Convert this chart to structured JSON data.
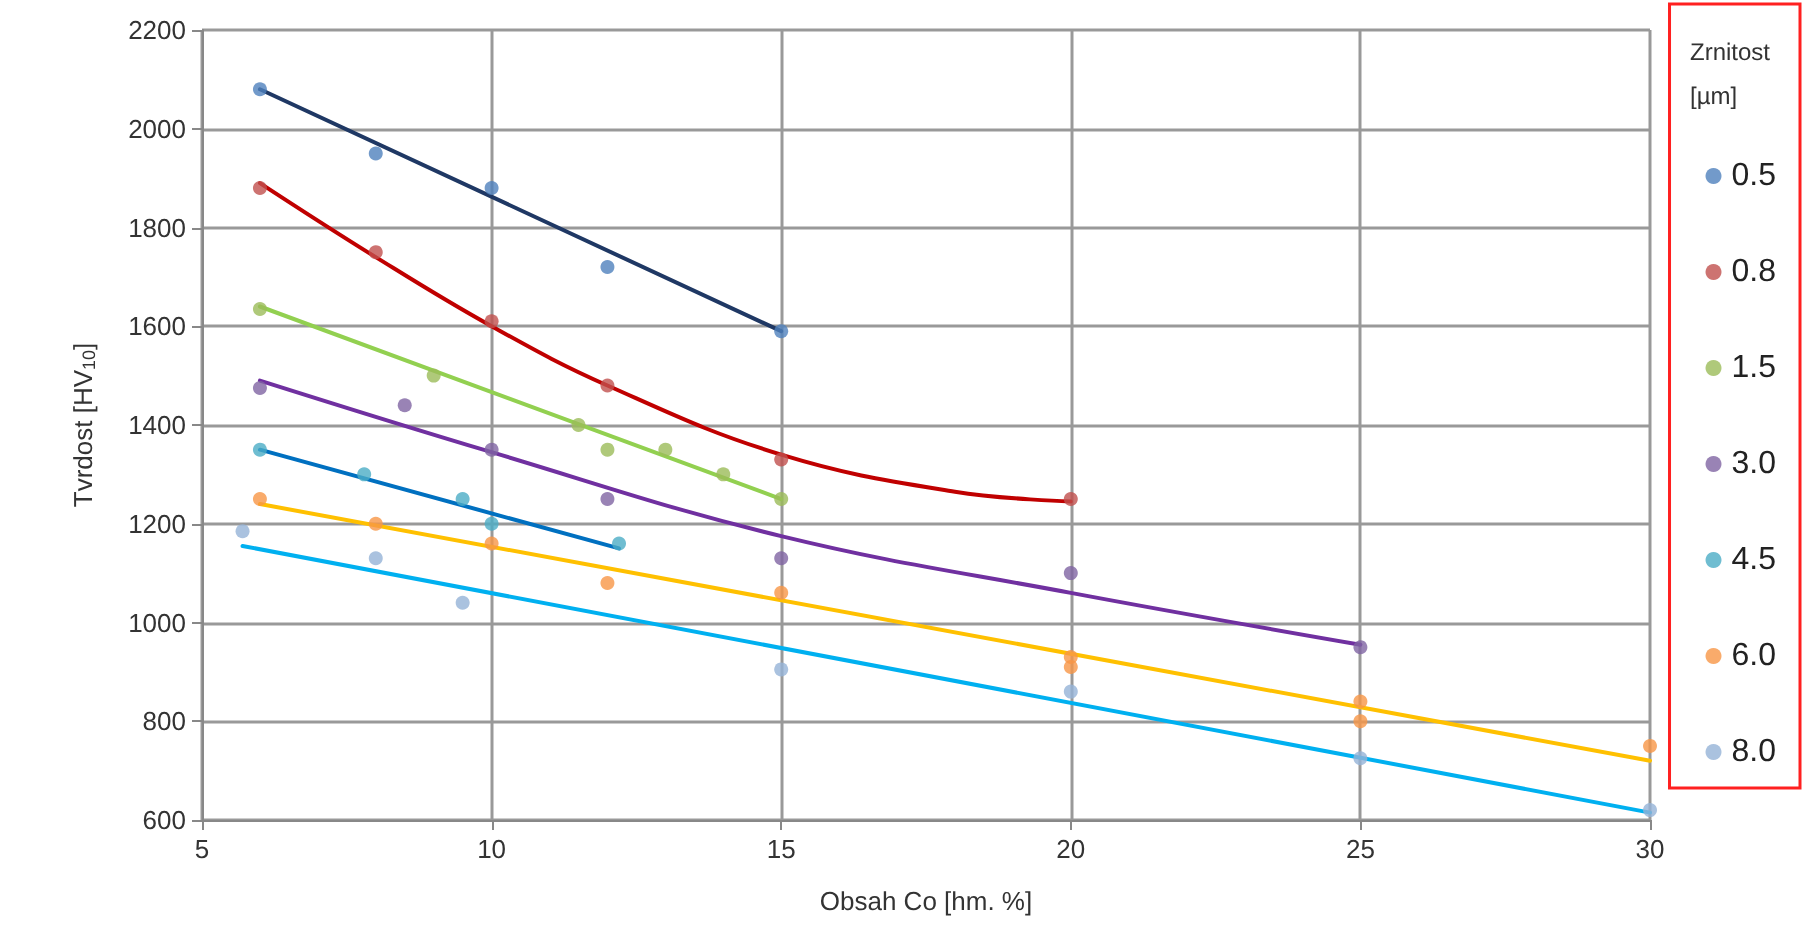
{
  "chart_data": {
    "type": "scatter",
    "xlabel": "Obsah Co [hm. %]",
    "ylabel": "Tvrdost [HV$_{10}$]",
    "legend_title": "Zrnitost\n[µm]",
    "xlim": [
      5,
      30
    ],
    "xticks": [
      5,
      10,
      15,
      20,
      25,
      30
    ],
    "ylim": [
      600,
      2200
    ],
    "yticks": [
      600,
      800,
      1000,
      1200,
      1400,
      1600,
      1800,
      2000,
      2200
    ],
    "grid": true,
    "legend": "right",
    "series": [
      {
        "name": "0.5",
        "marker": "circle",
        "color": "#4f81bd",
        "x": [
          6,
          8,
          10,
          12,
          15
        ],
        "values": [
          2080,
          1950,
          1880,
          1720,
          1590
        ]
      },
      {
        "name": "0.8",
        "marker": "circle",
        "color": "#c0504d",
        "x": [
          6,
          8,
          10,
          12,
          15,
          20
        ],
        "values": [
          1880,
          1750,
          1610,
          1480,
          1330,
          1250
        ]
      },
      {
        "name": "1.5",
        "marker": "circle",
        "color": "#9bbb59",
        "x": [
          6,
          9,
          11.5,
          12,
          13,
          14,
          15
        ],
        "values": [
          1635,
          1500,
          1400,
          1350,
          1350,
          1300,
          1250
        ]
      },
      {
        "name": "3.0",
        "marker": "circle",
        "color": "#8064a2",
        "x": [
          6,
          8.5,
          10,
          12,
          15,
          20,
          25
        ],
        "values": [
          1475,
          1440,
          1350,
          1250,
          1130,
          1100,
          950
        ]
      },
      {
        "name": "4.5",
        "marker": "circle",
        "color": "#4bacc6",
        "x": [
          6,
          7.8,
          9.5,
          10,
          12.2
        ],
        "values": [
          1350,
          1300,
          1250,
          1200,
          1160
        ]
      },
      {
        "name": "6.0",
        "marker": "circle",
        "color": "#f79646",
        "x": [
          6,
          8,
          10,
          12,
          15,
          20,
          20,
          25,
          25,
          30
        ],
        "values": [
          1250,
          1200,
          1160,
          1080,
          1060,
          930,
          910,
          840,
          800,
          750
        ]
      },
      {
        "name": "8.0",
        "marker": "circle",
        "color": "#95b3d7",
        "x": [
          5.7,
          8,
          9.5,
          15,
          20,
          25,
          30
        ],
        "values": [
          1185,
          1130,
          1040,
          905,
          860,
          725,
          620
        ]
      },
      {
        "type": "line",
        "marker": "none",
        "color": "#1f3864",
        "x": [
          6,
          15
        ],
        "values": [
          2080,
          1590
        ]
      },
      {
        "type": "line",
        "marker": "none",
        "color": "#c00000",
        "x": [
          6,
          8,
          10,
          12,
          15,
          18,
          20
        ],
        "values": [
          1890,
          1740,
          1600,
          1480,
          1340,
          1265,
          1245
        ]
      },
      {
        "type": "line",
        "marker": "none",
        "color": "#92d050",
        "x": [
          6,
          15
        ],
        "values": [
          1640,
          1250
        ]
      },
      {
        "type": "line",
        "marker": "none",
        "color": "#7030a0",
        "x": [
          6,
          10,
          15,
          20,
          25
        ],
        "values": [
          1490,
          1345,
          1175,
          1060,
          955
        ]
      },
      {
        "type": "line",
        "marker": "none",
        "color": "#0070c0",
        "x": [
          6,
          12.2
        ],
        "values": [
          1350,
          1150
        ]
      },
      {
        "type": "line",
        "marker": "none",
        "color": "#ffc000",
        "x": [
          6,
          30
        ],
        "values": [
          1240,
          720
        ]
      },
      {
        "type": "line",
        "marker": "none",
        "color": "#00b0f0",
        "x": [
          5.7,
          30
        ],
        "values": [
          1155,
          615
        ]
      }
    ]
  }
}
